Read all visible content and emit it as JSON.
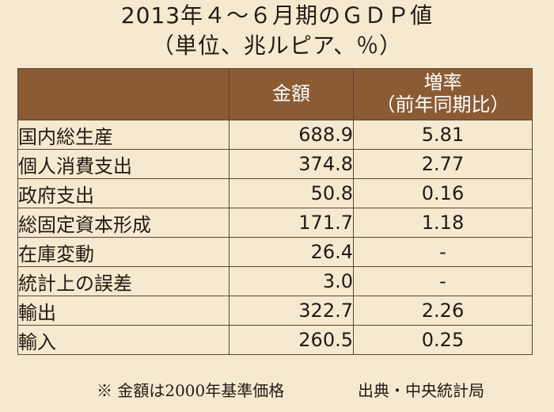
{
  "title": {
    "line1": "2013年４～６月期のＧＤＰ値",
    "line2": "（単位、兆ルピア、％）"
  },
  "table": {
    "headers": {
      "item": "",
      "amount": "金額",
      "rate_line1": "増率",
      "rate_line2": "（前年同期比）"
    },
    "rows": [
      {
        "label": "国内総生産",
        "amount": "688.9",
        "rate": "5.81"
      },
      {
        "label": "個人消費支出",
        "amount": "374.8",
        "rate": "2.77"
      },
      {
        "label": "政府支出",
        "amount": "50.8",
        "rate": "0.16"
      },
      {
        "label": "総固定資本形成",
        "amount": "171.7",
        "rate": "1.18"
      },
      {
        "label": "在庫変動",
        "amount": "26.4",
        "rate": "-"
      },
      {
        "label": "統計上の誤差",
        "amount": "3.0",
        "rate": "-"
      },
      {
        "label": "輸出",
        "amount": "322.7",
        "rate": "2.26"
      },
      {
        "label": "輸入",
        "amount": "260.5",
        "rate": "0.25"
      }
    ]
  },
  "footnote": {
    "note": "※ 金額は2000年基準価格",
    "source": "出典・中央統計局"
  }
}
